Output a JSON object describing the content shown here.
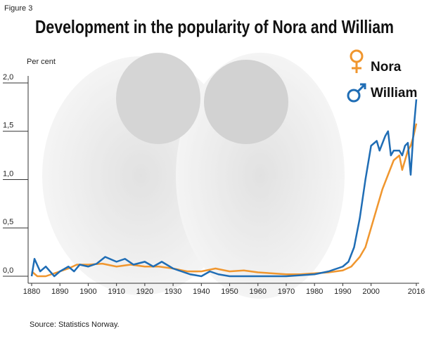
{
  "chart_data": {
    "type": "line",
    "title": "Development in the popularity of Nora and William",
    "figure_label": "Figure 3",
    "y_label": "Per cent",
    "source": "Source: Statistics Norway.",
    "xlim": [
      1880,
      2016
    ],
    "xticks": [
      1880,
      1890,
      1900,
      1910,
      1920,
      1930,
      1940,
      1950,
      1960,
      1970,
      1980,
      1990,
      2000,
      2016
    ],
    "ylim": [
      0,
      2
    ],
    "yticks": [
      {
        "value": 0,
        "label": "0,0"
      },
      {
        "value": 0.5,
        "label": "0,5"
      },
      {
        "value": 1,
        "label": "1,0"
      },
      {
        "value": 1.5,
        "label": "1,5"
      },
      {
        "value": 2,
        "label": "2,0"
      }
    ],
    "series": [
      {
        "name": "Nora",
        "color": "#f0962e",
        "x": [
          1880,
          1882,
          1885,
          1888,
          1890,
          1893,
          1896,
          1900,
          1905,
          1910,
          1915,
          1920,
          1925,
          1930,
          1935,
          1940,
          1945,
          1950,
          1955,
          1960,
          1965,
          1970,
          1975,
          1980,
          1985,
          1990,
          1993,
          1996,
          1998,
          2000,
          2002,
          2004,
          2006,
          2008,
          2010,
          2011,
          2012,
          2013,
          2014,
          2015,
          2016
        ],
        "values": [
          0.05,
          0.0,
          0.0,
          0.03,
          0.05,
          0.08,
          0.12,
          0.12,
          0.13,
          0.1,
          0.12,
          0.1,
          0.1,
          0.08,
          0.05,
          0.05,
          0.08,
          0.05,
          0.06,
          0.04,
          0.03,
          0.02,
          0.02,
          0.03,
          0.04,
          0.06,
          0.1,
          0.2,
          0.3,
          0.5,
          0.7,
          0.9,
          1.05,
          1.2,
          1.25,
          1.1,
          1.2,
          1.3,
          1.35,
          1.45,
          1.58
        ]
      },
      {
        "name": "William",
        "color": "#1f6db5",
        "x": [
          1880,
          1881,
          1883,
          1885,
          1888,
          1890,
          1893,
          1895,
          1897,
          1900,
          1903,
          1906,
          1910,
          1913,
          1916,
          1920,
          1923,
          1926,
          1930,
          1933,
          1936,
          1940,
          1943,
          1946,
          1950,
          1955,
          1960,
          1970,
          1975,
          1980,
          1985,
          1988,
          1990,
          1992,
          1994,
          1996,
          1998,
          2000,
          2002,
          2003,
          2005,
          2006,
          2007,
          2008,
          2010,
          2011,
          2012,
          2013,
          2014,
          2015,
          2016
        ],
        "values": [
          0.0,
          0.18,
          0.05,
          0.1,
          0.0,
          0.05,
          0.1,
          0.05,
          0.12,
          0.1,
          0.13,
          0.2,
          0.15,
          0.18,
          0.12,
          0.15,
          0.1,
          0.15,
          0.08,
          0.05,
          0.02,
          0.0,
          0.05,
          0.02,
          0.0,
          0.0,
          0.0,
          0.0,
          0.01,
          0.02,
          0.05,
          0.08,
          0.1,
          0.15,
          0.3,
          0.6,
          1.0,
          1.35,
          1.4,
          1.3,
          1.45,
          1.5,
          1.25,
          1.3,
          1.3,
          1.25,
          1.35,
          1.38,
          1.05,
          1.5,
          1.83
        ]
      }
    ]
  }
}
